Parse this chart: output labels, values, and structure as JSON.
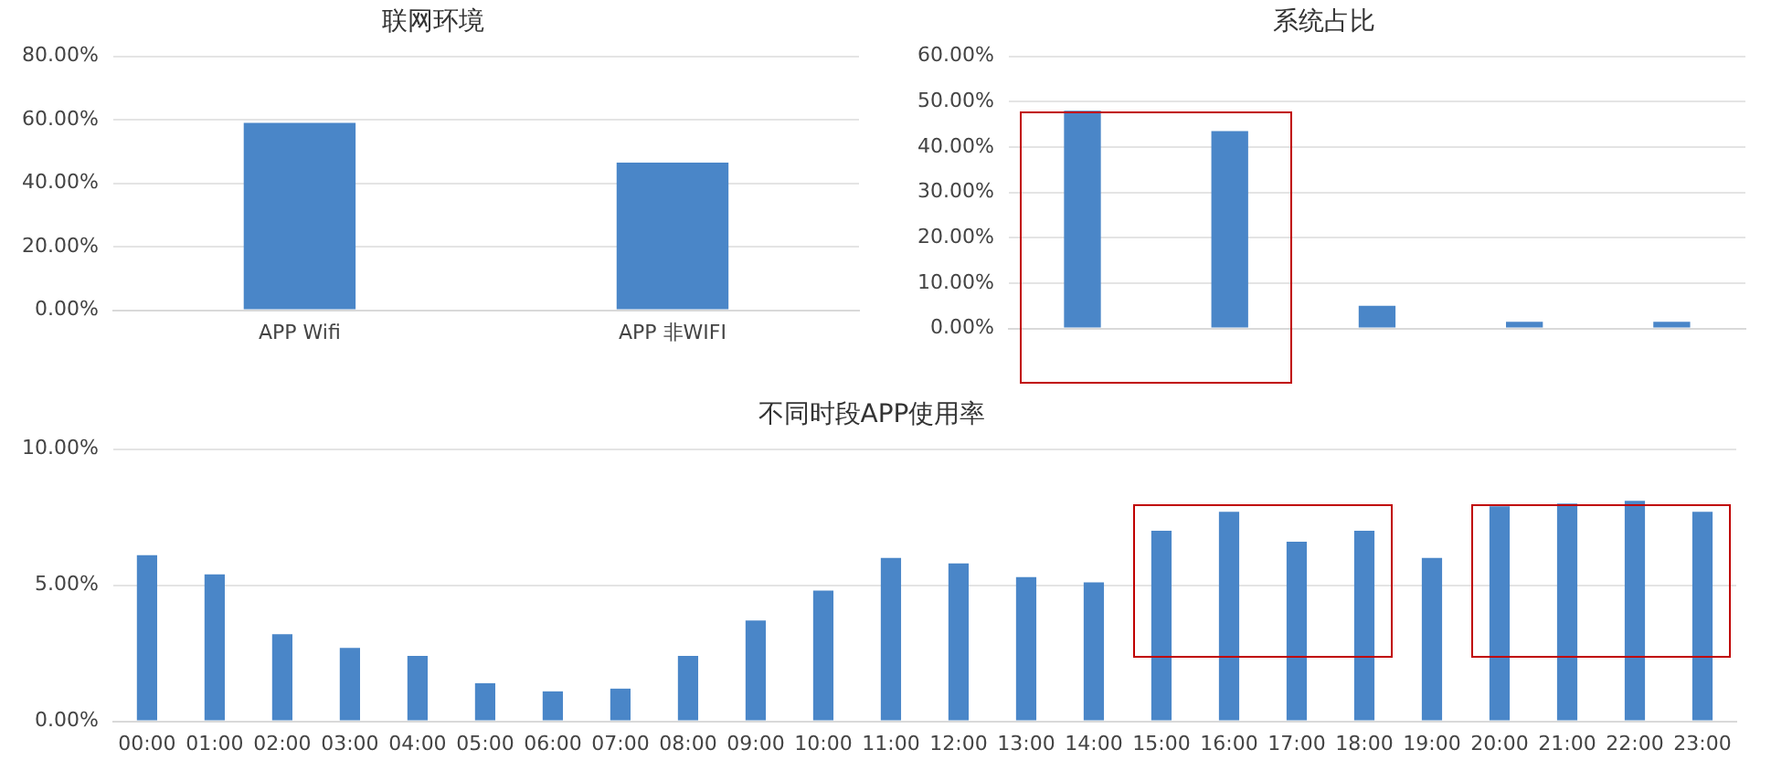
{
  "chart_data": [
    {
      "type": "bar",
      "title": "联网环境",
      "categories": [
        "APP Wifi",
        "APP 非WIFI"
      ],
      "values": [
        59,
        46.5
      ],
      "color": "#4a86c8",
      "ylim": [
        0,
        80
      ],
      "yticks": [
        {
          "value": 0,
          "label": "0.00%"
        },
        {
          "value": 20,
          "label": "20.00%"
        },
        {
          "value": 40,
          "label": "40.00%"
        },
        {
          "value": 60,
          "label": "60.00%"
        },
        {
          "value": 80,
          "label": "80.00%"
        }
      ],
      "grid": "y",
      "legend": false
    },
    {
      "type": "bar",
      "title": "系统占比",
      "categories": [
        null,
        null,
        null,
        null,
        null
      ],
      "values": [
        48,
        43.5,
        5,
        1.5,
        1.5
      ],
      "color": "#4a86c8",
      "ylim": [
        0,
        60
      ],
      "yticks": [
        {
          "value": 0,
          "label": "0.00%"
        },
        {
          "value": 10,
          "label": "10.00%"
        },
        {
          "value": 20,
          "label": "20.00%"
        },
        {
          "value": 30,
          "label": "30.00%"
        },
        {
          "value": 40,
          "label": "40.00%"
        },
        {
          "value": 50,
          "label": "50.00%"
        },
        {
          "value": 60,
          "label": "60.00%"
        }
      ],
      "grid": "y",
      "legend": false
    },
    {
      "type": "bar",
      "title": "不同时段APP使用率",
      "categories": [
        "00:00",
        "01:00",
        "02:00",
        "03:00",
        "04:00",
        "05:00",
        "06:00",
        "07:00",
        "08:00",
        "09:00",
        "10:00",
        "11:00",
        "12:00",
        "13:00",
        "14:00",
        "15:00",
        "16:00",
        "17:00",
        "18:00",
        "19:00",
        "20:00",
        "21:00",
        "22:00",
        "23:00"
      ],
      "values": [
        6.1,
        5.4,
        3.2,
        2.7,
        2.4,
        1.4,
        1.1,
        1.2,
        2.4,
        3.7,
        4.8,
        6.0,
        5.8,
        5.3,
        5.1,
        7.0,
        7.7,
        6.6,
        7.0,
        6.0,
        7.9,
        8.0,
        8.1,
        7.7
      ],
      "color": "#4a86c8",
      "ylim": [
        0,
        10
      ],
      "yticks": [
        {
          "value": 0,
          "label": "0.00%"
        },
        {
          "value": 5,
          "label": "5.00%"
        },
        {
          "value": 10,
          "label": "10.00%"
        }
      ],
      "grid": "y",
      "legend": false
    }
  ]
}
